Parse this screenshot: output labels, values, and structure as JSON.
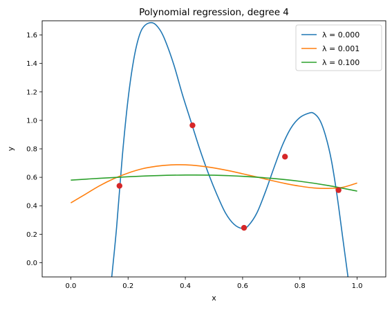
{
  "chart_data": {
    "type": "line",
    "title": "Polynomial regression, degree 4",
    "xlabel": "x",
    "ylabel": "y",
    "xlim": [
      -0.1,
      1.1
    ],
    "ylim": [
      -0.1,
      1.7
    ],
    "xticks": [
      "0.0",
      "0.2",
      "0.4",
      "0.6",
      "0.8",
      "1.0"
    ],
    "yticks": [
      "0.0",
      "0.2",
      "0.4",
      "0.6",
      "0.8",
      "1.0",
      "1.2",
      "1.4",
      "1.6"
    ],
    "legend_position": "top-right",
    "grid": false,
    "points": {
      "color": "#d62728",
      "x": [
        0.17,
        0.425,
        0.605,
        0.748,
        0.935
      ],
      "y": [
        0.54,
        0.965,
        0.245,
        0.745,
        0.51
      ]
    },
    "series": [
      {
        "name": "λ = 0.000",
        "color": "#1f77b4",
        "x": [
          0.143,
          0.16,
          0.18,
          0.2,
          0.22,
          0.24,
          0.26,
          0.287,
          0.31,
          0.33,
          0.36,
          0.39,
          0.42,
          0.45,
          0.48,
          0.51,
          0.54,
          0.57,
          0.6,
          0.62,
          0.65,
          0.68,
          0.71,
          0.74,
          0.77,
          0.8,
          0.83,
          0.848,
          0.87,
          0.89,
          0.91,
          0.93,
          0.95,
          0.968
        ],
        "y": [
          -0.1,
          0.25,
          0.75,
          1.15,
          1.43,
          1.6,
          1.67,
          1.685,
          1.64,
          1.56,
          1.39,
          1.18,
          0.99,
          0.8,
          0.63,
          0.48,
          0.35,
          0.27,
          0.24,
          0.26,
          0.35,
          0.5,
          0.67,
          0.83,
          0.95,
          1.02,
          1.05,
          1.05,
          1.0,
          0.89,
          0.72,
          0.47,
          0.17,
          -0.1
        ]
      },
      {
        "name": "λ =  0.001",
        "color": "#ff7f0e",
        "x": [
          0.0,
          0.05,
          0.1,
          0.15,
          0.2,
          0.25,
          0.3,
          0.35,
          0.4,
          0.45,
          0.5,
          0.55,
          0.6,
          0.65,
          0.7,
          0.75,
          0.8,
          0.85,
          0.9,
          0.95,
          1.0
        ],
        "y": [
          0.42,
          0.48,
          0.54,
          0.59,
          0.63,
          0.66,
          0.678,
          0.687,
          0.688,
          0.68,
          0.666,
          0.647,
          0.625,
          0.602,
          0.578,
          0.556,
          0.538,
          0.525,
          0.522,
          0.53,
          0.56
        ]
      },
      {
        "name": "λ =  0.100",
        "color": "#2ca02c",
        "x": [
          0.0,
          0.1,
          0.2,
          0.3,
          0.4,
          0.5,
          0.6,
          0.7,
          0.8,
          0.9,
          1.0
        ],
        "y": [
          0.58,
          0.593,
          0.604,
          0.612,
          0.616,
          0.615,
          0.607,
          0.593,
          0.572,
          0.542,
          0.503
        ]
      }
    ]
  }
}
